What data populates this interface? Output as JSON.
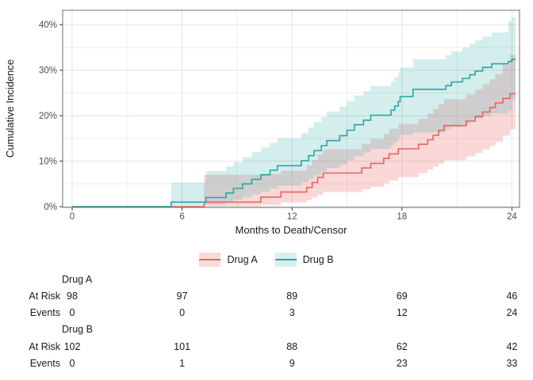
{
  "chart_data": {
    "type": "line",
    "subtype": "cumulative-incidence-step-with-ci-bands",
    "title": "",
    "xlabel": "Months to Death/Censor",
    "ylabel": "Cumulative Incidence",
    "xlim": [
      0,
      24.4
    ],
    "ylim": [
      0,
      43
    ],
    "x_ticks": [
      0,
      6,
      12,
      18,
      24
    ],
    "x_tick_labels": [
      "0",
      "6",
      "12",
      "18",
      "24"
    ],
    "y_ticks": [
      0,
      10,
      20,
      30,
      40
    ],
    "y_tick_labels": [
      "0%",
      "10%",
      "20%",
      "30%",
      "40%"
    ],
    "x_minor_gridlines": [
      3,
      9,
      15,
      21
    ],
    "y_minor_gridlines": [
      5,
      15,
      25,
      35
    ],
    "grid": "on",
    "legend_position": "bottom-center",
    "x_end": 24.2,
    "series": [
      {
        "name": "Drug A",
        "color": "#E8645E",
        "band_color": "rgba(232,100,94,0.25)",
        "points_format": [
          "month",
          "value_pct",
          "ci_lower_pct",
          "ci_upper_pct"
        ],
        "points": [
          [
            0,
            0,
            0,
            0
          ],
          [
            7.2,
            1.0,
            0.1,
            7.0
          ],
          [
            10.3,
            2.1,
            0.4,
            7.2
          ],
          [
            11.4,
            3.2,
            0.9,
            7.9
          ],
          [
            12.8,
            4.2,
            1.4,
            9.1
          ],
          [
            13.1,
            5.3,
            2.0,
            10.3
          ],
          [
            13.4,
            6.4,
            2.6,
            11.5
          ],
          [
            13.7,
            7.4,
            3.2,
            12.6
          ],
          [
            15.8,
            8.5,
            3.8,
            13.8
          ],
          [
            16.3,
            9.5,
            4.4,
            14.9
          ],
          [
            17.0,
            10.6,
            5.1,
            16.0
          ],
          [
            17.3,
            11.6,
            5.8,
            17.1
          ],
          [
            17.8,
            12.7,
            6.5,
            18.2
          ],
          [
            18.9,
            13.7,
            7.4,
            19.3
          ],
          [
            19.4,
            14.7,
            8.1,
            20.4
          ],
          [
            19.7,
            15.7,
            8.8,
            21.5
          ],
          [
            20.0,
            16.8,
            9.5,
            22.5
          ],
          [
            20.3,
            17.8,
            10.2,
            23.6
          ],
          [
            21.5,
            18.8,
            11.0,
            24.7
          ],
          [
            22.0,
            19.8,
            11.8,
            25.8
          ],
          [
            22.4,
            20.8,
            12.6,
            26.9
          ],
          [
            22.8,
            21.8,
            13.4,
            28.0
          ],
          [
            23.1,
            22.8,
            14.2,
            29.1
          ],
          [
            23.5,
            23.8,
            15.6,
            31.2
          ],
          [
            23.9,
            24.8,
            17.0,
            33.4
          ]
        ]
      },
      {
        "name": "Drug B",
        "color": "#2AA5A5",
        "band_color": "rgba(42,165,165,0.20)",
        "points_format": [
          "month",
          "value_pct",
          "ci_lower_pct",
          "ci_upper_pct"
        ],
        "points": [
          [
            0,
            0,
            0,
            0
          ],
          [
            5.4,
            1.0,
            0.2,
            5.3
          ],
          [
            7.3,
            2.0,
            0.5,
            7.8
          ],
          [
            8.4,
            3.0,
            1.0,
            8.8
          ],
          [
            8.8,
            4.0,
            1.5,
            9.8
          ],
          [
            9.3,
            5.0,
            2.1,
            10.9
          ],
          [
            9.8,
            6.0,
            2.7,
            12.0
          ],
          [
            10.3,
            7.0,
            3.3,
            13.0
          ],
          [
            10.8,
            8.0,
            4.0,
            14.0
          ],
          [
            11.2,
            9.0,
            4.6,
            15.0
          ],
          [
            12.5,
            10.1,
            5.4,
            16.2
          ],
          [
            12.9,
            11.2,
            6.1,
            17.4
          ],
          [
            13.2,
            12.3,
            6.9,
            18.6
          ],
          [
            13.6,
            13.4,
            7.7,
            19.7
          ],
          [
            13.9,
            14.5,
            8.5,
            20.9
          ],
          [
            14.6,
            15.6,
            9.3,
            22.0
          ],
          [
            15.0,
            16.8,
            10.2,
            23.2
          ],
          [
            15.4,
            18.0,
            11.1,
            24.4
          ],
          [
            15.9,
            19.0,
            11.9,
            25.4
          ],
          [
            16.3,
            20.1,
            12.7,
            26.5
          ],
          [
            17.4,
            21.2,
            13.5,
            27.6
          ],
          [
            17.6,
            22.1,
            14.2,
            28.5
          ],
          [
            17.8,
            23.1,
            15.0,
            29.5
          ],
          [
            17.9,
            24.2,
            15.8,
            30.6
          ],
          [
            18.6,
            25.8,
            16.3,
            32.4
          ],
          [
            20.4,
            26.6,
            16.9,
            33.3
          ],
          [
            20.7,
            27.4,
            17.5,
            34.1
          ],
          [
            21.3,
            28.2,
            18.1,
            35.0
          ],
          [
            21.7,
            29.0,
            18.7,
            35.8
          ],
          [
            22.0,
            29.8,
            19.3,
            36.6
          ],
          [
            22.4,
            30.6,
            19.9,
            37.4
          ],
          [
            22.9,
            31.4,
            20.5,
            38.3
          ],
          [
            23.8,
            31.9,
            21.0,
            40.8
          ],
          [
            24.0,
            32.4,
            23.3,
            41.6
          ]
        ]
      }
    ]
  },
  "axes": {
    "x_title": "Months to Death/Censor",
    "y_title": "Cumulative Incidence"
  },
  "legend": {
    "items": [
      {
        "label": "Drug A",
        "line_color": "#E8645E",
        "key_fill": "#F9DBD8"
      },
      {
        "label": "Drug B",
        "line_color": "#2AA5A5",
        "key_fill": "#D9EFEF"
      }
    ]
  },
  "risk_table": {
    "columns_months": [
      0,
      6,
      12,
      18,
      24
    ],
    "groups": [
      {
        "name": "Drug A",
        "rows": [
          {
            "label": "At Risk",
            "values": [
              "98",
              "97",
              "89",
              "69",
              "46"
            ]
          },
          {
            "label": "Events",
            "values": [
              "0",
              "0",
              "3",
              "12",
              "24"
            ]
          }
        ]
      },
      {
        "name": "Drug B",
        "rows": [
          {
            "label": "At Risk",
            "values": [
              "102",
              "101",
              "88",
              "62",
              "42"
            ]
          },
          {
            "label": "Events",
            "values": [
              "0",
              "1",
              "9",
              "23",
              "33"
            ]
          }
        ]
      }
    ]
  },
  "theme": {
    "panel_border_color": "#6f6f6f",
    "grid_major_color": "#e3e3e3",
    "grid_minor_color": "#eeeeee",
    "tick_mark_color": "#333333",
    "tick_label_color": "#4d4d4d",
    "text_color": "#1a1a1a",
    "background": "#ffffff"
  }
}
